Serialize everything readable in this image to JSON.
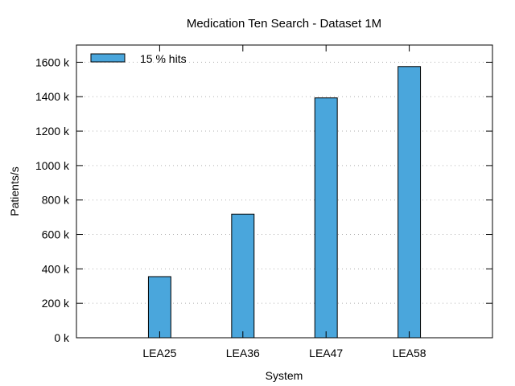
{
  "chart_data": {
    "type": "bar",
    "title": "Medication Ten Search - Dataset 1M",
    "xlabel": "System",
    "ylabel": "Patients/s",
    "categories": [
      "LEA25",
      "LEA36",
      "LEA47",
      "LEA58"
    ],
    "series": [
      {
        "name": "15 % hits",
        "values": [
          355,
          718,
          1393,
          1575
        ],
        "color": "#4aa6dc"
      }
    ],
    "ylim": [
      0,
      1700
    ],
    "yticks": [
      0,
      200,
      400,
      600,
      800,
      1000,
      1200,
      1400,
      1600
    ],
    "ytick_labels": [
      "0 k",
      "200 k",
      "400 k",
      "600 k",
      "800 k",
      "1000 k",
      "1200 k",
      "1400 k",
      "1600 k"
    ],
    "grid": true,
    "legend_position": "top-left"
  }
}
